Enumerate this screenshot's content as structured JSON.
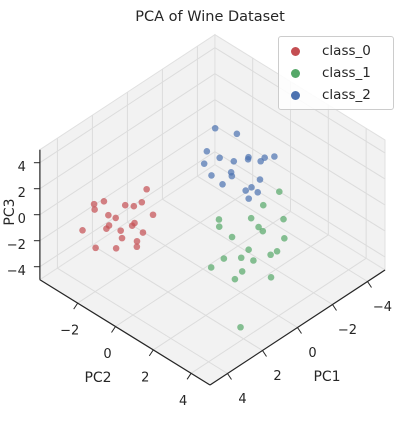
{
  "chart_data": {
    "type": "scatter3d",
    "title": "PCA of Wine Dataset",
    "xlabel": "PC1",
    "ylabel": "PC2",
    "zlabel": "PC3",
    "xlim": [
      -5,
      5
    ],
    "ylim": [
      -4,
      5
    ],
    "zlim": [
      -5,
      5
    ],
    "xticks": [
      {
        "value": -4,
        "label": "−4"
      },
      {
        "value": -2,
        "label": "−2"
      },
      0,
      2,
      4
    ],
    "yticks": [
      {
        "value": -2,
        "label": "−2"
      },
      0,
      2,
      4
    ],
    "zticks": [
      {
        "value": -4,
        "label": "−4"
      },
      {
        "value": -2,
        "label": "−2"
      },
      0,
      2,
      4
    ],
    "grid": true,
    "legend": "upper right",
    "series": [
      {
        "name": "class_0",
        "color": "#c44e52",
        "x": [
          3.3,
          2.5,
          2.8,
          3.9,
          3.1,
          2.2,
          4.1,
          3.6,
          2.9,
          3.4,
          1.9,
          2.6,
          3.8,
          4.3,
          3.0,
          2.4,
          3.5,
          2.1,
          4.4,
          2.7,
          3.2,
          1.6
        ],
        "y": [
          -1.3,
          -1.8,
          -0.9,
          -1.5,
          -2.1,
          -1.2,
          -0.8,
          -2.4,
          -1.6,
          -0.6,
          -1.9,
          -2.6,
          -1.1,
          -1.7,
          -0.4,
          -1.4,
          -2.0,
          -0.7,
          -2.3,
          -1.0,
          -2.8,
          -1.5
        ],
        "z": [
          -0.3,
          0.5,
          -1.2,
          0.2,
          -0.8,
          1.0,
          -0.5,
          0.6,
          -1.5,
          0.8,
          -0.2,
          -0.9,
          1.3,
          -1.1,
          0.1,
          -0.6,
          1.5,
          0.4,
          -0.2,
          -1.8,
          0.3,
          1.2
        ]
      },
      {
        "name": "class_1",
        "color": "#55a868",
        "x": [
          0.2,
          -0.8,
          1.0,
          -1.5,
          0.5,
          -0.3,
          1.4,
          -1.1,
          0.8,
          -0.5,
          1.8,
          -1.9,
          0.0,
          0.6,
          -1.3,
          1.2,
          -0.7,
          0.3,
          -2.2,
          0.9,
          2.5
        ],
        "y": [
          2.6,
          2.2,
          3.0,
          1.8,
          2.0,
          3.3,
          2.4,
          2.9,
          1.6,
          2.7,
          2.1,
          2.5,
          3.6,
          1.4,
          3.1,
          2.8,
          1.9,
          2.3,
          2.0,
          3.5,
          4.3
        ],
        "z": [
          -1.0,
          -0.5,
          -1.6,
          0.2,
          -0.3,
          -1.2,
          -0.8,
          -2.0,
          0.4,
          -0.1,
          -1.4,
          -0.6,
          -2.4,
          0.6,
          -1.0,
          -2.2,
          0.0,
          -1.8,
          0.8,
          -0.4,
          -3.4
        ]
      },
      {
        "name": "class_2",
        "color": "#4c72b0",
        "x": [
          -1.5,
          -2.3,
          -1.0,
          -2.8,
          -1.8,
          -0.7,
          -2.0,
          -3.2,
          -1.3,
          -2.5,
          -0.9,
          -1.6,
          -3.0,
          -2.1,
          -1.1,
          -2.6,
          -0.5,
          -1.9,
          -2.9,
          -1.4
        ],
        "y": [
          0.1,
          -0.5,
          0.6,
          -0.8,
          0.9,
          -0.2,
          1.2,
          0.3,
          -1.0,
          0.7,
          0.2,
          -0.6,
          1.0,
          -1.3,
          1.4,
          0.0,
          -0.4,
          0.5,
          -0.3,
          1.6
        ],
        "z": [
          1.2,
          0.8,
          1.8,
          2.2,
          0.5,
          1.4,
          2.6,
          1.0,
          2.0,
          0.3,
          0.9,
          1.6,
          1.9,
          2.8,
          0.7,
          1.3,
          2.3,
          -0.2,
          0.6,
          1.1
        ]
      }
    ]
  }
}
